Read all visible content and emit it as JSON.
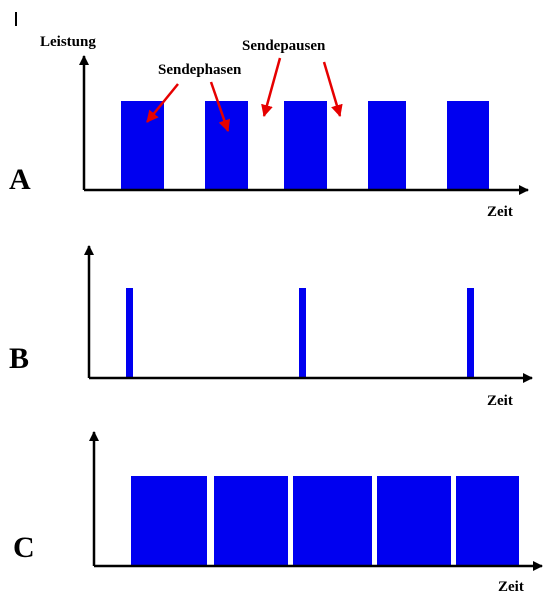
{
  "colors": {
    "pulse": "#0000f0",
    "axis": "#000000",
    "annotation_arrow": "#e60000",
    "background": "#ffffff"
  },
  "labels": {
    "y_axis": "Leistung",
    "transmission_phases": "Sendephasen",
    "transmission_pauses": "Sendepausen"
  },
  "panels": [
    {
      "letter": "A",
      "x_axis_label": "Zeit"
    },
    {
      "letter": "B",
      "x_axis_label": "Zeit"
    },
    {
      "letter": "C",
      "x_axis_label": "Zeit"
    }
  ]
}
